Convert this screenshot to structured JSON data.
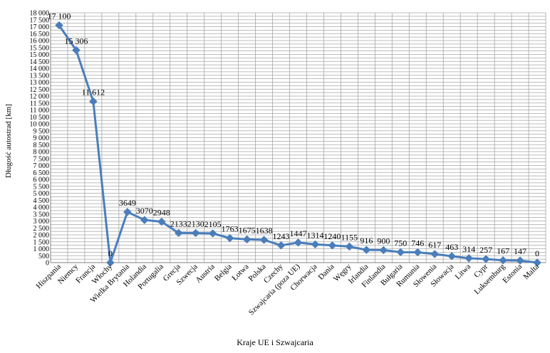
{
  "chart_data": {
    "type": "line",
    "xlabel": "Kraje UE i Szwajcaria",
    "ylabel": "Długość autostrad [km]",
    "ylim": [
      0,
      18000
    ],
    "ytick_step": 250,
    "ytick_label_step": 500,
    "grid": true,
    "series_color": "#4a7ebb",
    "categories": [
      "Hiszpania",
      "Niemcy",
      "Francja",
      "Włochy",
      "Wielka Brytania",
      "Holandia",
      "Portugalia",
      "Grecja",
      "Szwecja",
      "Austria",
      "Belgia",
      "Łotwa",
      "Polska",
      "Czechy",
      "Szwajcaria (poza UE)",
      "Chorwacja",
      "Dania",
      "Węgry",
      "Irlandia",
      "Finlandia",
      "Bułgaria",
      "Rumunia",
      "Słowenia",
      "Słowacja",
      "Litwa",
      "Cypr",
      "Luksemburg",
      "Estonia",
      "Malta"
    ],
    "values": [
      17100,
      15306,
      11612,
      0,
      3649,
      3070,
      2948,
      2133,
      2130,
      2105,
      1763,
      1675,
      1638,
      1243,
      1447,
      1314,
      1240,
      1155,
      916,
      900,
      750,
      746,
      617,
      463,
      314,
      257,
      167,
      147,
      0
    ],
    "data_labels": [
      "17 100",
      "15 306",
      "11 612",
      "0",
      "3649",
      "3070",
      "2948",
      "2133",
      "2130",
      "2105",
      "1763",
      "1675",
      "1638",
      "1243",
      "1447",
      "1314",
      "1240",
      "1155",
      "916",
      "900",
      "750",
      "746",
      "617",
      "463",
      "314",
      "257",
      "167",
      "147",
      "0"
    ]
  }
}
